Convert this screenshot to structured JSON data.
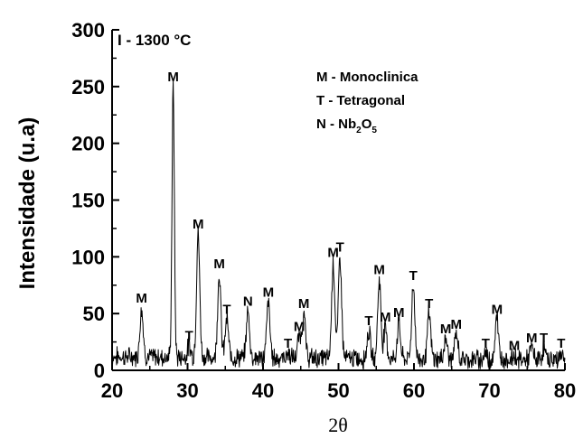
{
  "chart_data": {
    "type": "line",
    "title": "I - 1300 °C",
    "xlabel": "2θ",
    "ylabel": "Intensidade (u.a)",
    "xlim": [
      20,
      80
    ],
    "ylim": [
      0,
      300
    ],
    "x_ticks": [
      "20",
      "30",
      "40",
      "50",
      "60",
      "70",
      "80"
    ],
    "y_ticks": [
      "0",
      "50",
      "100",
      "150",
      "200",
      "250",
      "300"
    ],
    "legend": {
      "placement": "top-right",
      "entries": [
        {
          "label": "M - Monoclinica"
        },
        {
          "label": "T - Tetragonal"
        },
        {
          "label": "N - Nb",
          "sub1": "2",
          "mid": "O",
          "sub2": "5"
        }
      ]
    },
    "peaks": [
      {
        "x": 23.9,
        "y": 55,
        "label": "M"
      },
      {
        "x": 28.1,
        "y": 250,
        "label": "M"
      },
      {
        "x": 30.2,
        "y": 22,
        "label": "T"
      },
      {
        "x": 31.4,
        "y": 120,
        "label": "M"
      },
      {
        "x": 34.2,
        "y": 85,
        "label": "M"
      },
      {
        "x": 35.2,
        "y": 45,
        "label": "T"
      },
      {
        "x": 38.0,
        "y": 52,
        "label": "N"
      },
      {
        "x": 40.7,
        "y": 60,
        "label": "M"
      },
      {
        "x": 43.3,
        "y": 15,
        "label": "T"
      },
      {
        "x": 44.8,
        "y": 30,
        "label": "M"
      },
      {
        "x": 45.4,
        "y": 50,
        "label": "M"
      },
      {
        "x": 49.3,
        "y": 95,
        "label": "M"
      },
      {
        "x": 50.2,
        "y": 100,
        "label": "T"
      },
      {
        "x": 54.0,
        "y": 35,
        "label": "T"
      },
      {
        "x": 55.4,
        "y": 80,
        "label": "M"
      },
      {
        "x": 56.2,
        "y": 38,
        "label": "M"
      },
      {
        "x": 58.0,
        "y": 42,
        "label": "M"
      },
      {
        "x": 59.9,
        "y": 75,
        "label": "T"
      },
      {
        "x": 62.0,
        "y": 50,
        "label": "T"
      },
      {
        "x": 64.2,
        "y": 28,
        "label": "M"
      },
      {
        "x": 65.6,
        "y": 32,
        "label": "M"
      },
      {
        "x": 69.5,
        "y": 15,
        "label": "T"
      },
      {
        "x": 71.0,
        "y": 45,
        "label": "M"
      },
      {
        "x": 73.3,
        "y": 13,
        "label": "M"
      },
      {
        "x": 75.6,
        "y": 20,
        "label": "M"
      },
      {
        "x": 77.2,
        "y": 20,
        "label": "T"
      },
      {
        "x": 79.5,
        "y": 15,
        "label": "T"
      }
    ],
    "series_style": {
      "color": "#000000"
    },
    "grid": false
  }
}
